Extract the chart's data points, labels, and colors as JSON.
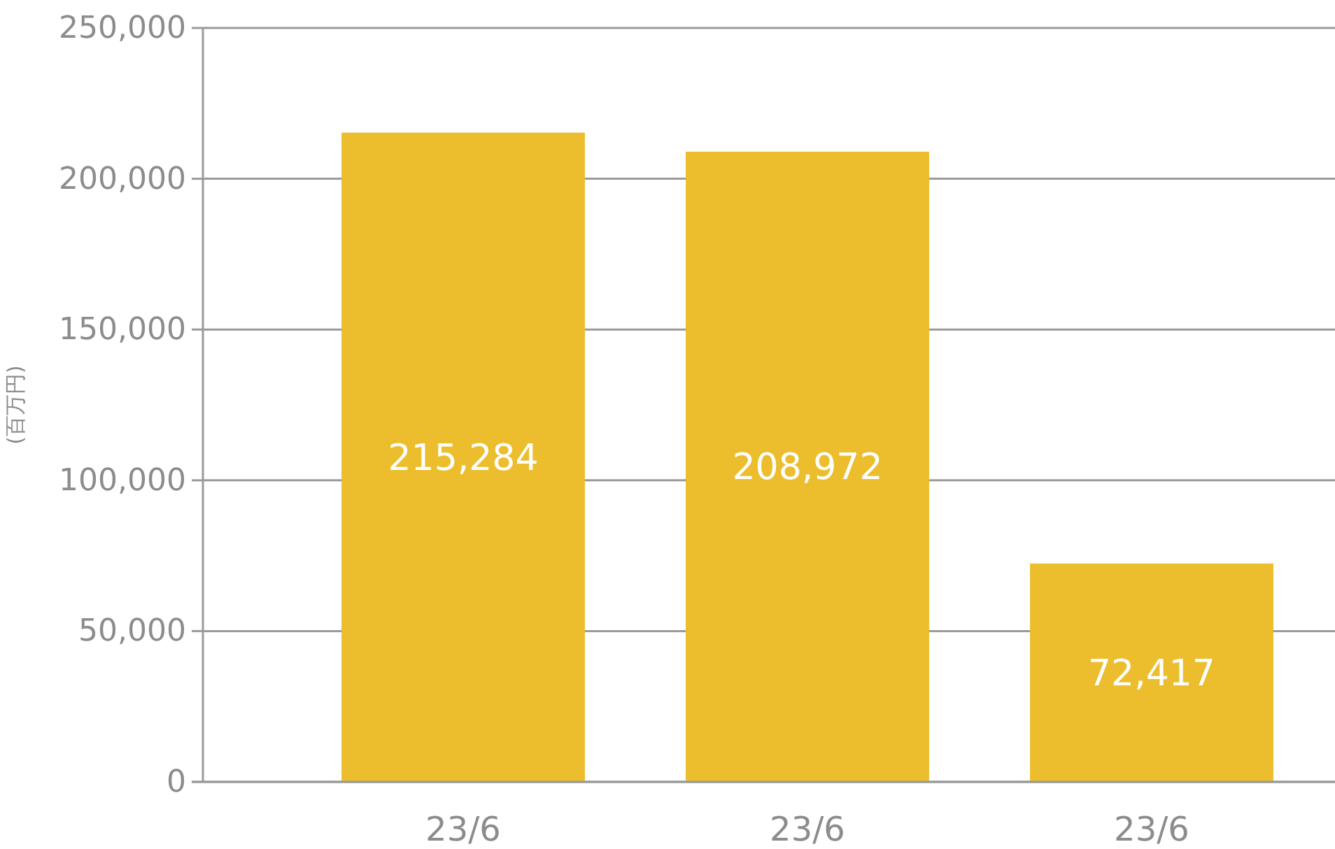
{
  "chart_data": {
    "type": "bar",
    "ylabel": "(百万円)",
    "categories": [
      "23/6",
      "23/6",
      "23/6"
    ],
    "values": [
      215284,
      208972,
      72417
    ],
    "color": "#ecbd2c",
    "ylim": [
      0,
      250000
    ],
    "yticks": [
      {
        "value": 0,
        "label": "0"
      },
      {
        "value": 50000,
        "label": "50,000"
      },
      {
        "value": 100000,
        "label": "100,000"
      },
      {
        "value": 150000,
        "label": "150,000"
      },
      {
        "value": 200000,
        "label": "200,000"
      },
      {
        "value": 250000,
        "label": "250,000"
      }
    ],
    "value_labels": [
      "215,284",
      "208,972",
      "72,417"
    ],
    "grid": "y"
  }
}
